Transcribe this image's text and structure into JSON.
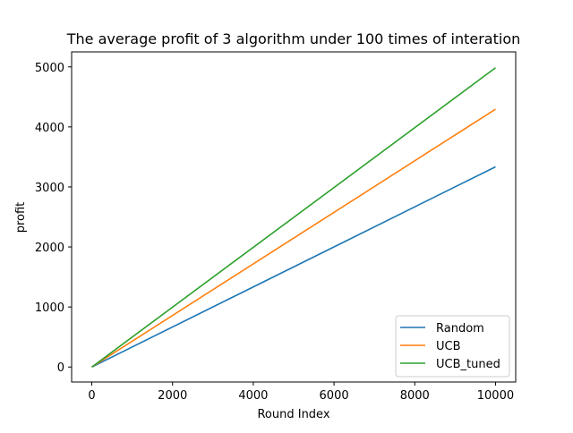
{
  "chart_data": {
    "type": "line",
    "title": "The average profit of 3 algorithm under 100 times of interation",
    "xlabel": "Round Index",
    "ylabel": "profit",
    "xlim": [
      -500,
      10500
    ],
    "ylim": [
      -250,
      5250
    ],
    "x_ticks": [
      0,
      2000,
      4000,
      6000,
      8000,
      10000
    ],
    "y_ticks": [
      0,
      1000,
      2000,
      3000,
      4000,
      5000
    ],
    "x_tick_labels": [
      "0",
      "2000",
      "4000",
      "6000",
      "8000",
      "10000"
    ],
    "y_tick_labels": [
      "0",
      "1000",
      "2000",
      "3000",
      "4000",
      "5000"
    ],
    "grid": false,
    "legend_position": "lower-right",
    "series": [
      {
        "name": "Random",
        "color": "#1f77b4",
        "x": [
          0,
          10000
        ],
        "y": [
          0,
          3335
        ]
      },
      {
        "name": "UCB",
        "color": "#ff7f0e",
        "x": [
          0,
          10000
        ],
        "y": [
          0,
          4295
        ]
      },
      {
        "name": "UCB_tuned",
        "color": "#2ca02c",
        "x": [
          0,
          10000
        ],
        "y": [
          0,
          4985
        ]
      }
    ]
  }
}
